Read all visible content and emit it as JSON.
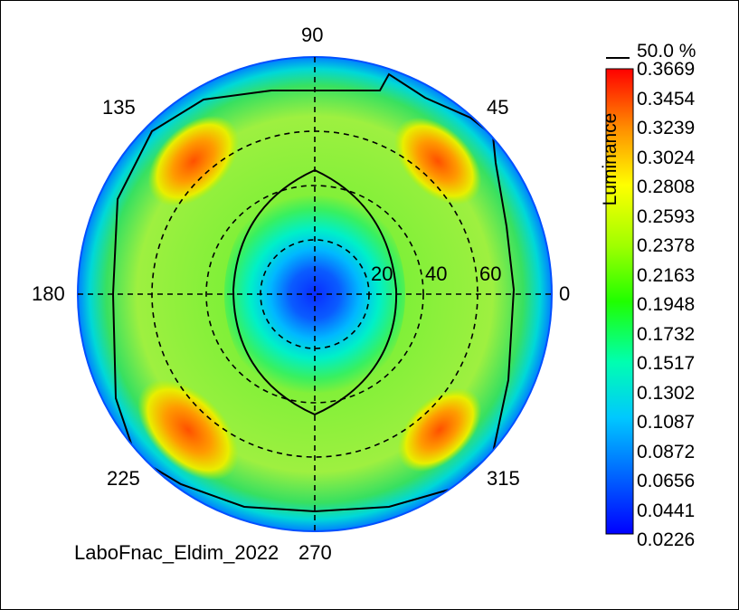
{
  "chart_data": {
    "type": "heatmap",
    "subtype": "polar-contour",
    "angular_labels": [
      "90",
      "45",
      "0",
      "315",
      "270",
      "225",
      "180",
      "135"
    ],
    "radial_labels": [
      "20",
      "40",
      "60"
    ],
    "colorbar": {
      "label": "Luminance",
      "ticks": [
        "0.3669",
        "0.3454",
        "0.3239",
        "0.3024",
        "0.2808",
        "0.2593",
        "0.2378",
        "0.2163",
        "0.1948",
        "0.1732",
        "0.1517",
        "0.1302",
        "0.1087",
        "0.0872",
        "0.0656",
        "0.0441",
        "0.0226"
      ],
      "min": 0.0226,
      "max": 0.3669
    },
    "contour_legend": "50.0 %",
    "footer": "LaboFnac_Eldim_2022",
    "center_value": 0.03,
    "hotspots_value": 0.33,
    "edge_value": 0.12
  }
}
